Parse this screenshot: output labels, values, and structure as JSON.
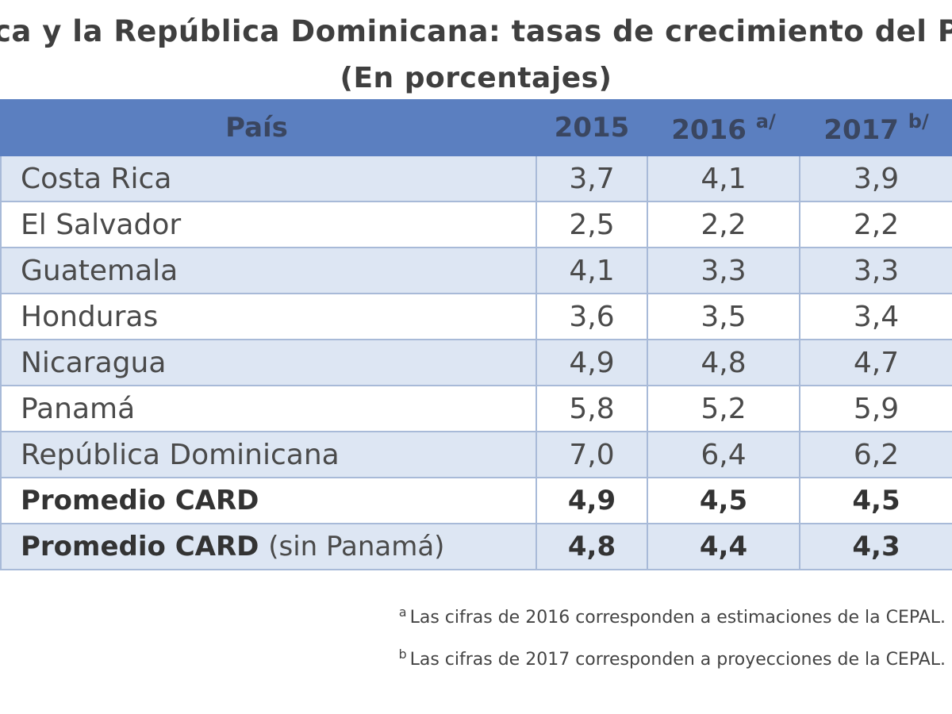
{
  "title": {
    "line1": "ca y la República Dominicana: tasas de crecimiento del P",
    "line2": "(En porcentajes)"
  },
  "table": {
    "headers": {
      "country": "País",
      "y2015": "2015",
      "y2016": "2016",
      "y2016_mark": "a/",
      "y2017": "2017",
      "y2017_mark": "b/"
    },
    "rows": [
      {
        "country": "Costa Rica",
        "v2015": "3,7",
        "v2016": "4,1",
        "v2017": "3,9"
      },
      {
        "country": "El Salvador",
        "v2015": "2,5",
        "v2016": "2,2",
        "v2017": "2,2"
      },
      {
        "country": "Guatemala",
        "v2015": "4,1",
        "v2016": "3,3",
        "v2017": "3,3"
      },
      {
        "country": "Honduras",
        "v2015": "3,6",
        "v2016": "3,5",
        "v2017": "3,4"
      },
      {
        "country": "Nicaragua",
        "v2015": "4,9",
        "v2016": "4,8",
        "v2017": "4,7"
      },
      {
        "country": "Panamá",
        "v2015": "5,8",
        "v2016": "5,2",
        "v2017": "5,9"
      },
      {
        "country": "República Dominicana",
        "v2015": "7,0",
        "v2016": "6,4",
        "v2017": "6,2"
      }
    ],
    "avg": {
      "label": "Promedio CARD",
      "v2015": "4,9",
      "v2016": "4,5",
      "v2017": "4,5"
    },
    "avg_no_panama": {
      "label": "Promedio CARD",
      "label_suffix": "(sin Panamá)",
      "v2015": "4,8",
      "v2016": "4,4",
      "v2017": "4,3"
    }
  },
  "notes": {
    "a_mark": "a",
    "a_text": "Las cifras de 2016 corresponden a estimaciones de la CEPAL.",
    "b_mark": "b",
    "b_text": "Las cifras de 2017 corresponden a proyecciones de la CEPAL."
  },
  "colors": {
    "header_bg": "#5b7fc0",
    "band": "#dde6f3",
    "border": "#a8bad8"
  }
}
